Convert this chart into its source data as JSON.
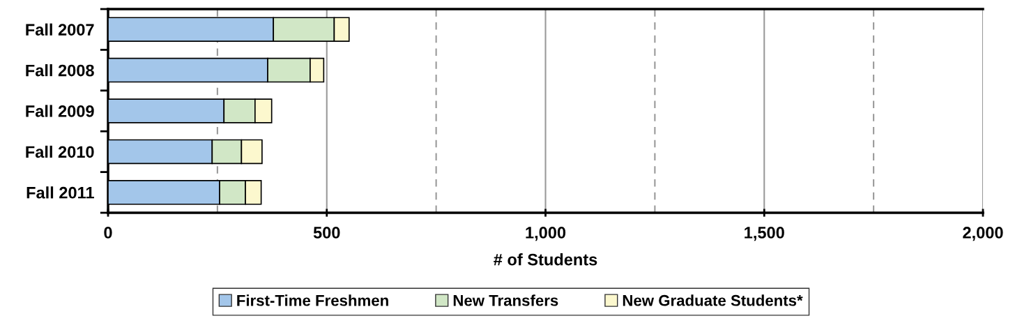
{
  "chart_data": {
    "type": "bar",
    "orientation": "horizontal",
    "stacked": true,
    "categories": [
      "Fall 2007",
      "Fall 2008",
      "Fall 2009",
      "Fall 2010",
      "Fall 2011"
    ],
    "series": [
      {
        "name": "First-Time Freshmen",
        "color": "#a3c6ea",
        "values": [
          378,
          365,
          265,
          238,
          255
        ]
      },
      {
        "name": "New Transfers",
        "color": "#d1e7c6",
        "values": [
          139,
          97,
          71,
          67,
          59
        ]
      },
      {
        "name": "New Graduate Students*",
        "color": "#fcf8ce",
        "values": [
          34,
          31,
          38,
          47,
          36
        ]
      }
    ],
    "xlabel": "# of Students",
    "xlim": [
      0,
      2000
    ],
    "xticks": [
      0,
      {
        "value": 250,
        "label": null
      },
      {
        "value": 500,
        "label": "500"
      },
      {
        "value": 750,
        "label": null
      },
      {
        "value": 1000,
        "label": "1,000"
      },
      {
        "value": 1250,
        "label": null
      },
      {
        "value": 1500,
        "label": "1,500"
      },
      {
        "value": 1750,
        "label": null
      },
      {
        "value": 2000,
        "label": "2,000"
      }
    ],
    "grid": "x",
    "legend": "bottom"
  }
}
